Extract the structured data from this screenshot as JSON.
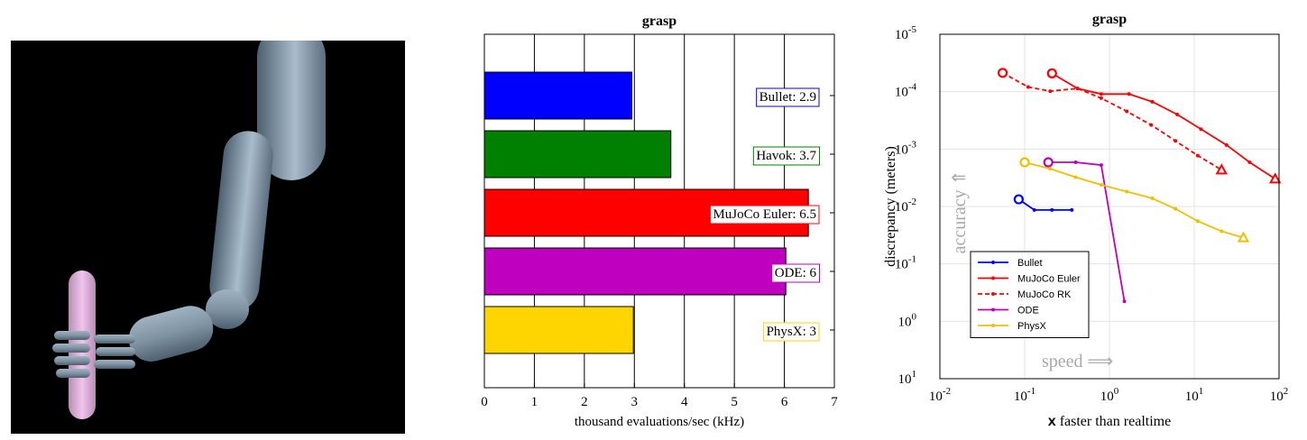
{
  "chart_data": [
    {
      "type": "bar",
      "orientation": "horizontal",
      "title": "grasp",
      "xlabel": "thousand evaluations/sec (kHz)",
      "xlim": [
        0,
        7
      ],
      "xticks": [
        "0",
        "1",
        "2",
        "3",
        "4",
        "5",
        "6",
        "7"
      ],
      "grid": true,
      "bars": [
        {
          "label": "Bullet: 2.9",
          "value": 2.95,
          "color": "#0000ff"
        },
        {
          "label": "Havok: 3.7",
          "value": 3.73,
          "color": "#008000"
        },
        {
          "label": "MuJoCo Euler: 6.5",
          "value": 6.48,
          "color": "#ff0000"
        },
        {
          "label": "ODE: 6",
          "value": 6.03,
          "color": "#bf00bf"
        },
        {
          "label": "PhysX: 3",
          "value": 2.98,
          "color": "#ffd500"
        }
      ]
    },
    {
      "type": "line",
      "title": "grasp",
      "xlabel_bold": "x",
      "xlabel_rest": " faster than realtime",
      "ylabel": "discrepancy (meters)",
      "xscale": "log",
      "yscale": "log",
      "xlim": [
        0.01,
        100
      ],
      "ylim": [
        10,
        1e-05
      ],
      "xtick_base": "10",
      "xtick_exps": [
        "-2",
        "-1",
        "0",
        "1",
        "2"
      ],
      "ytick_base": "10",
      "ytick_exps": [
        "-5",
        "-4",
        "-3",
        "-2",
        "-1",
        "0",
        "1"
      ],
      "grid": true,
      "legend_position": "bottom-left",
      "annotation_accuracy": "accuracy ⇑",
      "annotation_speed": "speed ⟹",
      "series": [
        {
          "name": "Bullet",
          "color": "#0000ff",
          "dash": false,
          "x": [
            0.085,
            0.13,
            0.21,
            0.36
          ],
          "y": [
            0.0075,
            0.0115,
            0.0115,
            0.0115
          ]
        },
        {
          "name": "MuJoCo Euler",
          "color": "#ff0000",
          "dash": false,
          "x": [
            0.21,
            0.42,
            0.8,
            1.7,
            3.2,
            6.3,
            12,
            24,
            45,
            90
          ],
          "y": [
            4.8e-05,
            8.8e-05,
            0.00011,
            0.00011,
            0.00015,
            0.00025,
            0.00045,
            0.00085,
            0.0017,
            0.0033
          ]
        },
        {
          "name": "MuJoCo RK",
          "color": "#ff0000",
          "dash": true,
          "x": [
            0.055,
            0.11,
            0.2,
            0.42,
            0.8,
            1.6,
            3.1,
            6,
            11,
            21
          ],
          "y": [
            4.7e-05,
            8.3e-05,
            9.8e-05,
            8.8e-05,
            0.00013,
            0.00022,
            0.00038,
            0.00072,
            0.0013,
            0.0023
          ]
        },
        {
          "name": "ODE",
          "color": "#bf00bf",
          "dash": false,
          "x": [
            0.19,
            0.4,
            0.8,
            1.5
          ],
          "y": [
            0.0017,
            0.0017,
            0.0019,
            0.45
          ]
        },
        {
          "name": "PhysX",
          "color": "#f0c000",
          "dash": false,
          "x": [
            0.1,
            0.2,
            0.4,
            0.8,
            1.6,
            3.2,
            6,
            11,
            21,
            38
          ],
          "y": [
            0.0017,
            0.0022,
            0.0031,
            0.0042,
            0.0055,
            0.0072,
            0.011,
            0.018,
            0.027,
            0.035
          ]
        }
      ]
    }
  ]
}
